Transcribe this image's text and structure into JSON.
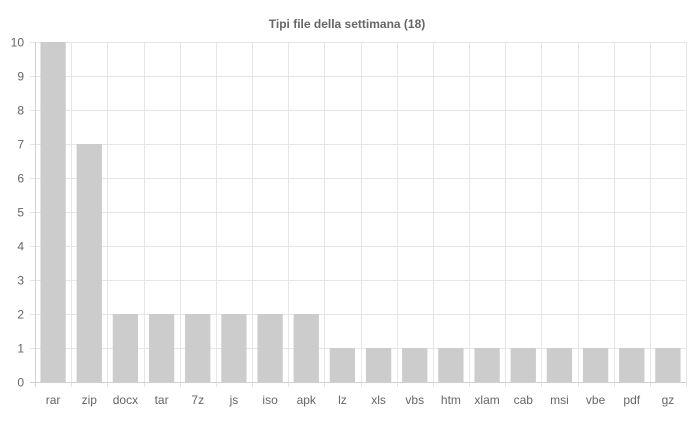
{
  "chart_data": {
    "type": "bar",
    "title": "Tipi file della settimana (18)",
    "xlabel": "",
    "ylabel": "",
    "categories": [
      "rar",
      "zip",
      "docx",
      "tar",
      "7z",
      "js",
      "iso",
      "apk",
      "lz",
      "xls",
      "vbs",
      "htm",
      "xlam",
      "cab",
      "msi",
      "vbe",
      "pdf",
      "gz"
    ],
    "values": [
      10,
      7,
      2,
      2,
      2,
      2,
      2,
      2,
      1,
      1,
      1,
      1,
      1,
      1,
      1,
      1,
      1,
      1
    ],
    "ylim": [
      0,
      10
    ],
    "yticks": [
      0,
      1,
      2,
      3,
      4,
      5,
      6,
      7,
      8,
      9,
      10
    ],
    "grid": true,
    "legend": "none",
    "colors": {
      "bar_fill": "#cccccd",
      "grid": "#e6e6e6",
      "axis": "#d0d0d0",
      "text": "#666666"
    }
  }
}
